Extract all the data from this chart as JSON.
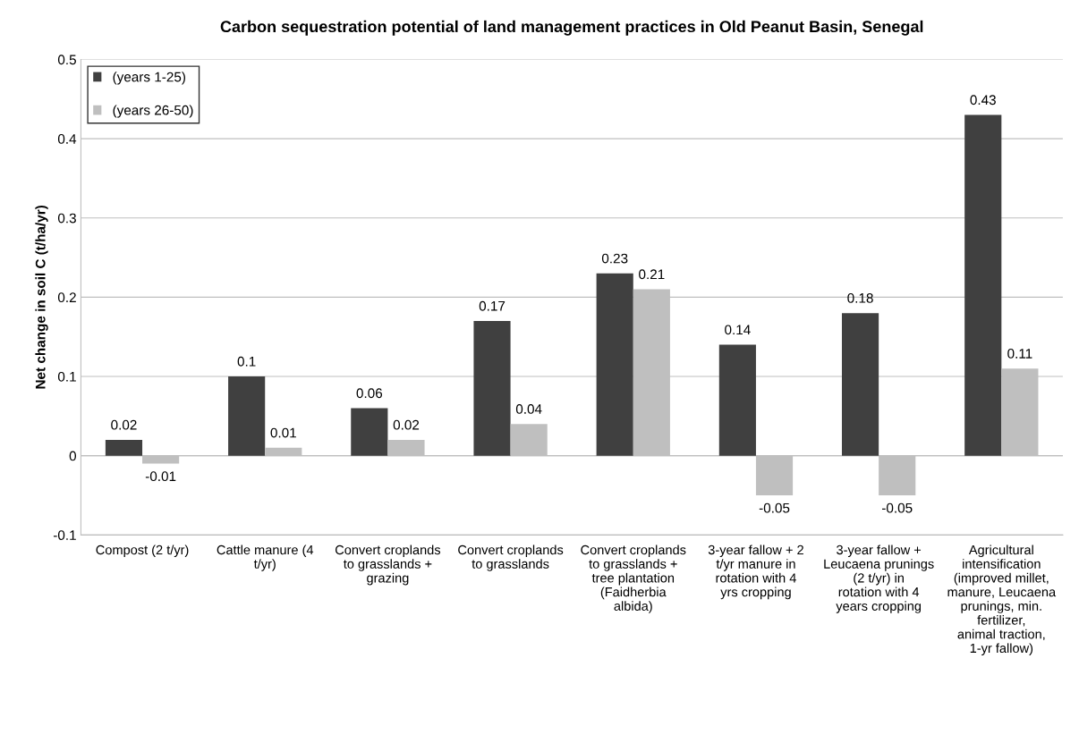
{
  "chart_data": {
    "type": "bar",
    "title": "Carbon sequestration potential of land management practices in Old Peanut Basin, Senegal",
    "ylabel": "Net change in soil C (t/ha/yr)",
    "categories": [
      "Compost (2 t/yr)",
      "Cattle manure (4 t/yr)",
      "Convert croplands to grasslands + grazing",
      "Convert croplands to grasslands",
      "Convert croplands to grasslands + tree plantation (Faidherbia albida)",
      "3-year fallow + 2 t/yr manure in rotation with 4 yrs cropping",
      "3-year fallow + Leucaena prunings (2 t/yr) in rotation with 4 years cropping",
      "Agricultural intensification (improved millet, manure, Leucaena prunings, min. fertilizer, animal traction, 1-yr fallow)"
    ],
    "series": [
      {
        "name": "(years 1-25)",
        "color": "#404040",
        "values": [
          0.02,
          0.1,
          0.06,
          0.17,
          0.23,
          0.14,
          0.18,
          0.43
        ]
      },
      {
        "name": "(years 26-50)",
        "color": "#bfbfbf",
        "values": [
          -0.01,
          0.01,
          0.02,
          0.04,
          0.21,
          -0.05,
          -0.05,
          0.11
        ]
      }
    ],
    "ylim": [
      -0.1,
      0.5
    ],
    "yticks": [
      -0.1,
      0,
      0.1,
      0.2,
      0.3,
      0.4,
      0.5
    ],
    "grid": "y",
    "legend": "top left",
    "data_labels": true
  }
}
